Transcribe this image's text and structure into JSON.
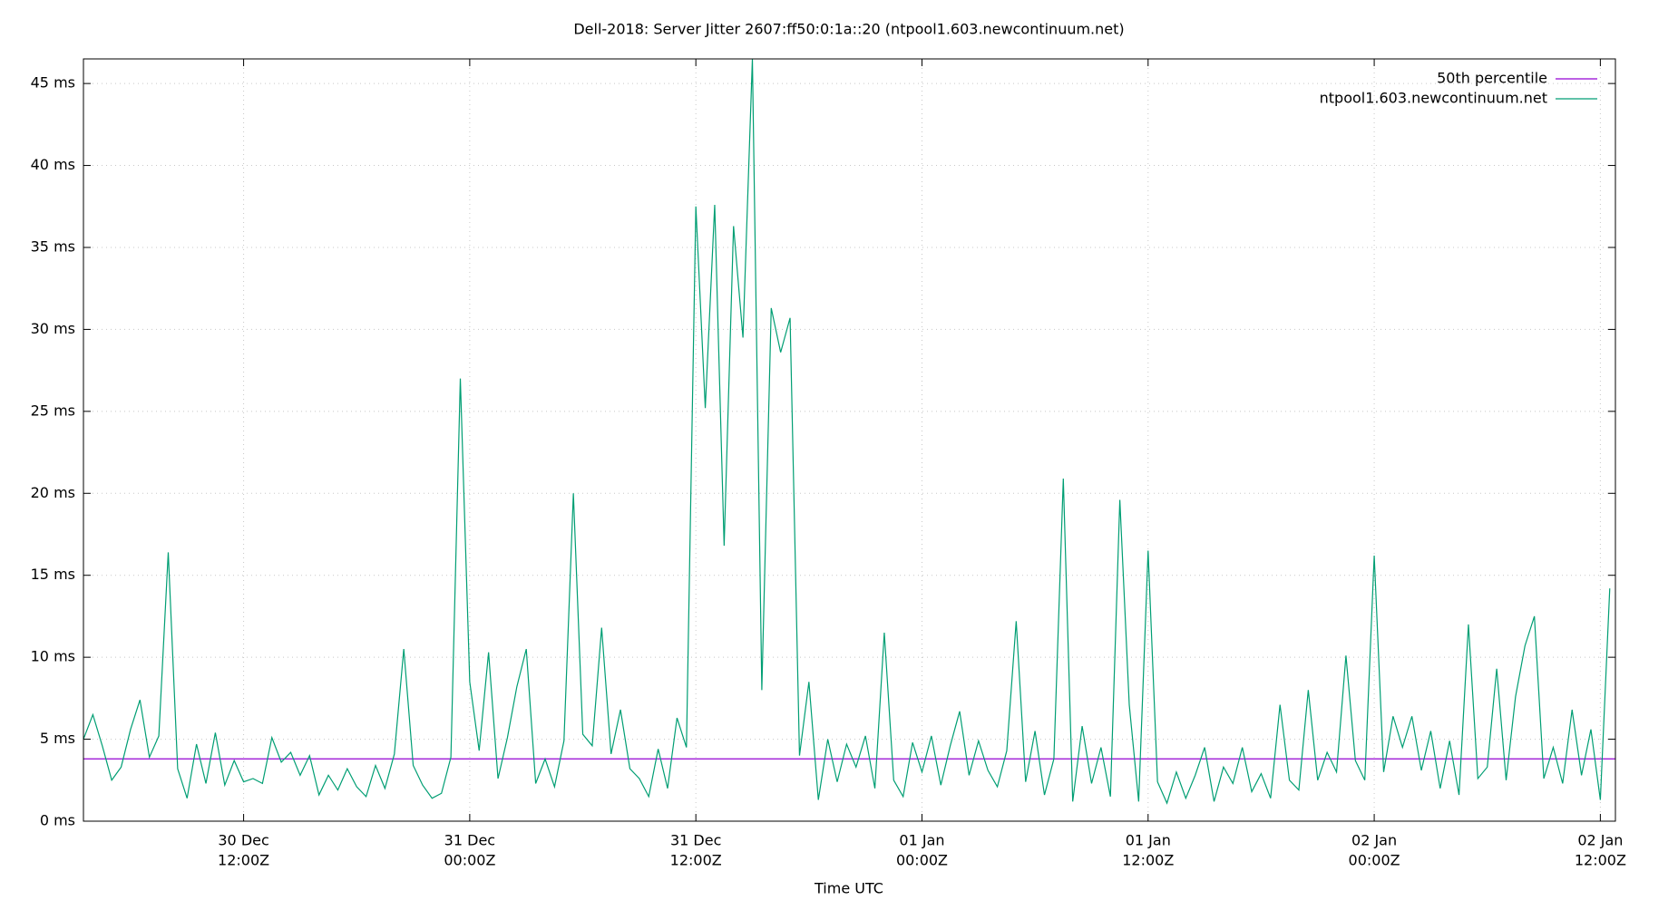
{
  "chart_data": {
    "type": "line",
    "title": "Dell-2018: Server Jitter 2607:ff50:0:1a::20 (ntpool1.603.newcontinuum.net)",
    "x_label": "Time UTC",
    "xlim": [
      "30 Dec 03:30Z",
      "02 Jan 12:48Z"
    ],
    "xticks": [
      {
        "value": "30 Dec 12:00Z",
        "label": [
          "30 Dec",
          "12:00Z"
        ]
      },
      {
        "value": "31 Dec 00:00Z",
        "label": [
          "31 Dec",
          "00:00Z"
        ]
      },
      {
        "value": "31 Dec 12:00Z",
        "label": [
          "31 Dec",
          "12:00Z"
        ]
      },
      {
        "value": "01 Jan 00:00Z",
        "label": [
          "01 Jan",
          "00:00Z"
        ]
      },
      {
        "value": "01 Jan 12:00Z",
        "label": [
          "01 Jan",
          "12:00Z"
        ]
      },
      {
        "value": "02 Jan 00:00Z",
        "label": [
          "02 Jan",
          "00:00Z"
        ]
      },
      {
        "value": "02 Jan 12:00Z",
        "label": [
          "02 Jan",
          "12:00Z"
        ]
      }
    ],
    "ylim": [
      0,
      46.5
    ],
    "yticks": [
      {
        "value": 0,
        "label": "0 ms"
      },
      {
        "value": 5,
        "label": "5 ms"
      },
      {
        "value": 10,
        "label": "10 ms"
      },
      {
        "value": 15,
        "label": "15 ms"
      },
      {
        "value": 20,
        "label": "20 ms"
      },
      {
        "value": 25,
        "label": "25 ms"
      },
      {
        "value": 30,
        "label": "30 ms"
      },
      {
        "value": 35,
        "label": "35 ms"
      },
      {
        "value": 40,
        "label": "40 ms"
      },
      {
        "value": 45,
        "label": "45 ms"
      }
    ],
    "grid": true,
    "legend_position": "upper right",
    "series": [
      {
        "name": "50th percentile",
        "color": "#9400d3",
        "x": [
          "30 Dec 03:30Z",
          "02 Jan 12:48Z"
        ],
        "values": [
          3.8,
          3.8
        ]
      },
      {
        "name": "ntpool1.603.newcontinuum.net",
        "color": "#009e73",
        "x": [
          "30 Dec 03:30Z",
          "30 Dec 04:00Z",
          "30 Dec 04:30Z",
          "30 Dec 05:00Z",
          "30 Dec 05:30Z",
          "30 Dec 06:00Z",
          "30 Dec 06:30Z",
          "30 Dec 07:00Z",
          "30 Dec 07:30Z",
          "30 Dec 08:00Z",
          "30 Dec 08:30Z",
          "30 Dec 09:00Z",
          "30 Dec 09:30Z",
          "30 Dec 10:00Z",
          "30 Dec 10:30Z",
          "30 Dec 11:00Z",
          "30 Dec 11:30Z",
          "30 Dec 12:00Z",
          "30 Dec 12:30Z",
          "30 Dec 13:00Z",
          "30 Dec 13:30Z",
          "30 Dec 14:00Z",
          "30 Dec 14:30Z",
          "30 Dec 15:00Z",
          "30 Dec 15:30Z",
          "30 Dec 16:00Z",
          "30 Dec 16:30Z",
          "30 Dec 17:00Z",
          "30 Dec 17:30Z",
          "30 Dec 18:00Z",
          "30 Dec 18:30Z",
          "30 Dec 19:00Z",
          "30 Dec 19:30Z",
          "30 Dec 20:00Z",
          "30 Dec 20:30Z",
          "30 Dec 21:00Z",
          "30 Dec 21:30Z",
          "30 Dec 22:00Z",
          "30 Dec 22:30Z",
          "30 Dec 23:00Z",
          "30 Dec 23:30Z",
          "31 Dec 00:00Z",
          "31 Dec 00:30Z",
          "31 Dec 01:00Z",
          "31 Dec 01:30Z",
          "31 Dec 02:00Z",
          "31 Dec 02:30Z",
          "31 Dec 03:00Z",
          "31 Dec 03:30Z",
          "31 Dec 04:00Z",
          "31 Dec 04:30Z",
          "31 Dec 05:00Z",
          "31 Dec 05:30Z",
          "31 Dec 06:00Z",
          "31 Dec 06:30Z",
          "31 Dec 07:00Z",
          "31 Dec 07:30Z",
          "31 Dec 08:00Z",
          "31 Dec 08:30Z",
          "31 Dec 09:00Z",
          "31 Dec 09:30Z",
          "31 Dec 10:00Z",
          "31 Dec 10:30Z",
          "31 Dec 11:00Z",
          "31 Dec 11:30Z",
          "31 Dec 12:00Z",
          "31 Dec 12:30Z",
          "31 Dec 13:00Z",
          "31 Dec 13:30Z",
          "31 Dec 14:00Z",
          "31 Dec 14:30Z",
          "31 Dec 15:00Z",
          "31 Dec 15:30Z",
          "31 Dec 16:00Z",
          "31 Dec 16:30Z",
          "31 Dec 17:00Z",
          "31 Dec 17:30Z",
          "31 Dec 18:00Z",
          "31 Dec 18:30Z",
          "31 Dec 19:00Z",
          "31 Dec 19:30Z",
          "31 Dec 20:00Z",
          "31 Dec 20:30Z",
          "31 Dec 21:00Z",
          "31 Dec 21:30Z",
          "31 Dec 22:00Z",
          "31 Dec 22:30Z",
          "31 Dec 23:00Z",
          "31 Dec 23:30Z",
          "01 Jan 00:00Z",
          "01 Jan 00:30Z",
          "01 Jan 01:00Z",
          "01 Jan 01:30Z",
          "01 Jan 02:00Z",
          "01 Jan 02:30Z",
          "01 Jan 03:00Z",
          "01 Jan 03:30Z",
          "01 Jan 04:00Z",
          "01 Jan 04:30Z",
          "01 Jan 05:00Z",
          "01 Jan 05:30Z",
          "01 Jan 06:00Z",
          "01 Jan 06:30Z",
          "01 Jan 07:00Z",
          "01 Jan 07:30Z",
          "01 Jan 08:00Z",
          "01 Jan 08:30Z",
          "01 Jan 09:00Z",
          "01 Jan 09:30Z",
          "01 Jan 10:00Z",
          "01 Jan 10:30Z",
          "01 Jan 11:00Z",
          "01 Jan 11:30Z",
          "01 Jan 12:00Z",
          "01 Jan 12:30Z",
          "01 Jan 13:00Z",
          "01 Jan 13:30Z",
          "01 Jan 14:00Z",
          "01 Jan 14:30Z",
          "01 Jan 15:00Z",
          "01 Jan 15:30Z",
          "01 Jan 16:00Z",
          "01 Jan 16:30Z",
          "01 Jan 17:00Z",
          "01 Jan 17:30Z",
          "01 Jan 18:00Z",
          "01 Jan 18:30Z",
          "01 Jan 19:00Z",
          "01 Jan 19:30Z",
          "01 Jan 20:00Z",
          "01 Jan 20:30Z",
          "01 Jan 21:00Z",
          "01 Jan 21:30Z",
          "01 Jan 22:00Z",
          "01 Jan 22:30Z",
          "01 Jan 23:00Z",
          "01 Jan 23:30Z",
          "02 Jan 00:00Z",
          "02 Jan 00:30Z",
          "02 Jan 01:00Z",
          "02 Jan 01:30Z",
          "02 Jan 02:00Z",
          "02 Jan 02:30Z",
          "02 Jan 03:00Z",
          "02 Jan 03:30Z",
          "02 Jan 04:00Z",
          "02 Jan 04:30Z",
          "02 Jan 05:00Z",
          "02 Jan 05:30Z",
          "02 Jan 06:00Z",
          "02 Jan 06:30Z",
          "02 Jan 07:00Z",
          "02 Jan 07:30Z",
          "02 Jan 08:00Z",
          "02 Jan 08:30Z",
          "02 Jan 09:00Z",
          "02 Jan 09:30Z",
          "02 Jan 10:00Z",
          "02 Jan 10:30Z",
          "02 Jan 11:00Z",
          "02 Jan 11:30Z",
          "02 Jan 12:00Z",
          "02 Jan 12:30Z"
        ],
        "values": [
          5.0,
          6.5,
          4.6,
          2.5,
          3.3,
          5.6,
          7.4,
          3.9,
          5.2,
          16.4,
          3.2,
          1.4,
          4.7,
          2.3,
          5.4,
          2.2,
          3.7,
          2.4,
          2.6,
          2.3,
          5.1,
          3.6,
          4.2,
          2.8,
          4.0,
          1.6,
          2.8,
          1.9,
          3.2,
          2.1,
          1.5,
          3.4,
          2.0,
          4.1,
          10.5,
          3.4,
          2.2,
          1.4,
          1.7,
          3.9,
          27.0,
          8.5,
          4.3,
          10.3,
          2.6,
          5.1,
          8.2,
          10.5,
          2.3,
          3.8,
          2.1,
          4.9,
          20.0,
          5.3,
          4.6,
          11.8,
          4.1,
          6.8,
          3.2,
          2.6,
          1.5,
          4.4,
          2.0,
          6.3,
          4.5,
          37.5,
          25.2,
          37.6,
          16.8,
          36.3,
          29.5,
          46.5,
          8.0,
          31.3,
          28.6,
          30.7,
          4.0,
          8.5,
          1.3,
          5.0,
          2.4,
          4.7,
          3.3,
          5.2,
          2.0,
          11.5,
          2.5,
          1.5,
          4.8,
          3.0,
          5.2,
          2.2,
          4.6,
          6.7,
          2.8,
          4.9,
          3.1,
          2.1,
          4.3,
          12.2,
          2.4,
          5.5,
          1.6,
          3.8,
          20.9,
          1.2,
          5.8,
          2.3,
          4.5,
          1.5,
          19.6,
          7.1,
          1.2,
          16.5,
          2.4,
          1.1,
          3.0,
          1.4,
          2.8,
          4.5,
          1.2,
          3.3,
          2.3,
          4.5,
          1.8,
          2.9,
          1.4,
          7.1,
          2.5,
          1.9,
          8.0,
          2.5,
          4.2,
          3.0,
          10.1,
          3.7,
          2.5,
          16.2,
          3.0,
          6.4,
          4.5,
          6.4,
          3.1,
          5.5,
          2.0,
          4.9,
          1.6,
          12.0,
          2.6,
          3.3,
          9.3,
          2.5,
          7.6,
          10.7,
          12.5,
          2.6,
          4.5,
          2.3,
          6.8,
          2.8,
          5.6,
          1.3,
          14.2
        ]
      }
    ]
  }
}
